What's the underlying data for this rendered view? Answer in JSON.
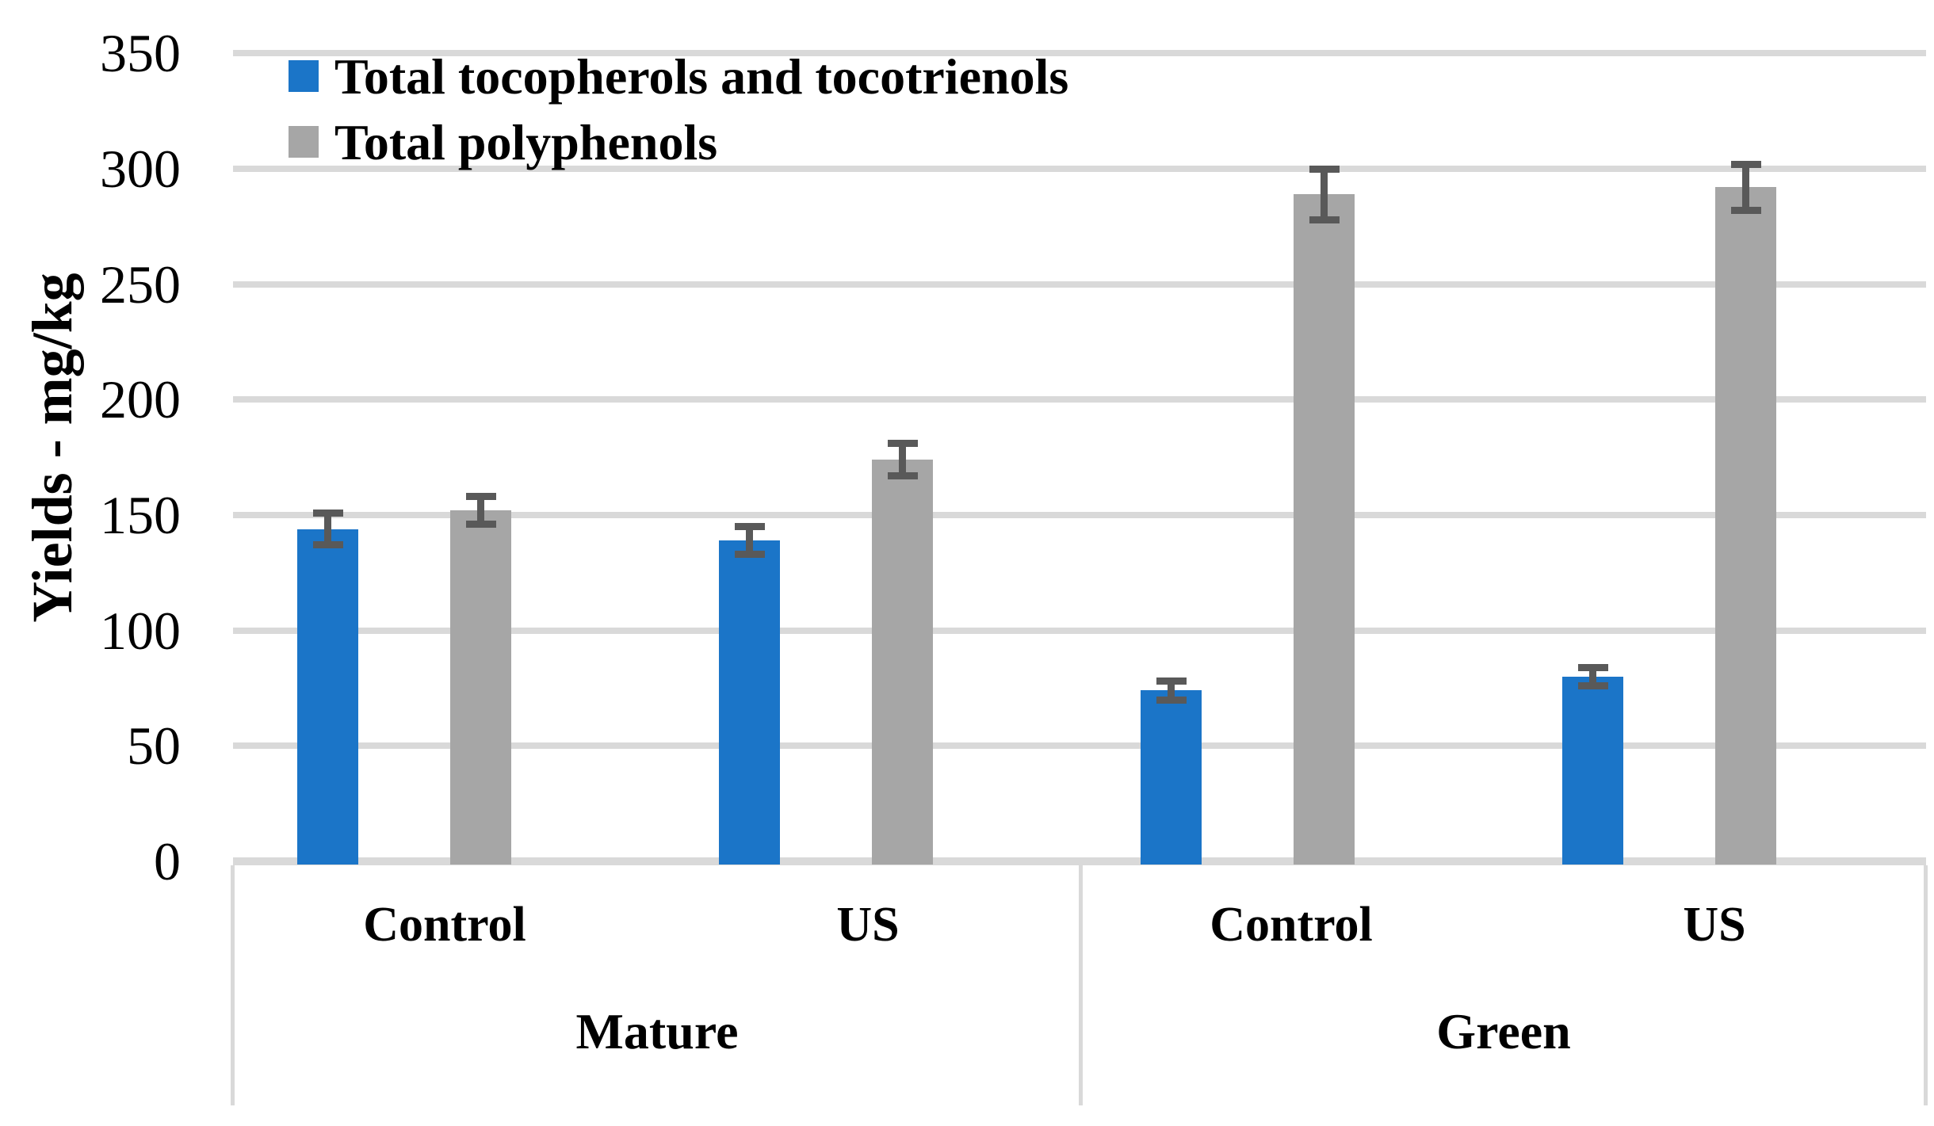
{
  "y_axis": {
    "title": "Yields - mg/kg",
    "tick_labels": [
      "0",
      "50",
      "100",
      "150",
      "200",
      "250",
      "300",
      "350"
    ],
    "min": 0,
    "max": 350,
    "tick_step": 50
  },
  "legend": {
    "items": [
      {
        "label": "Total tocopherols and tocotrienols",
        "color": "#1b75c8"
      },
      {
        "label": "Total polyphenols",
        "color": "#a6a6a6"
      }
    ]
  },
  "x_axis": {
    "sub_labels": [
      "Control",
      "US",
      "Control",
      "US"
    ],
    "group_labels": [
      "Mature",
      "Green"
    ]
  },
  "colors": {
    "series1": "#1b75c8",
    "series2": "#a6a6a6",
    "error_bar": "#595959",
    "gridline": "#d9d9d9",
    "text": "#000000",
    "background": "#ffffff"
  },
  "chart_data": {
    "type": "bar",
    "title": "",
    "xlabel": "",
    "ylabel": "Yields - mg/kg",
    "ylim": [
      0,
      350
    ],
    "grid": true,
    "legend_position": "top-left",
    "groups": [
      "Mature",
      "Green"
    ],
    "categories": [
      "Mature Control",
      "Mature US",
      "Green Control",
      "Green US"
    ],
    "series": [
      {
        "name": "Total tocopherols and tocotrienols",
        "color": "#1b75c8",
        "values": [
          144,
          139,
          74,
          80
        ],
        "errors": [
          7,
          6,
          4,
          4
        ]
      },
      {
        "name": "Total polyphenols",
        "color": "#a6a6a6",
        "values": [
          152,
          174,
          289,
          292
        ],
        "errors": [
          6,
          7,
          11,
          10
        ]
      }
    ],
    "error_bars": true,
    "error_bar_color": "#595959"
  }
}
